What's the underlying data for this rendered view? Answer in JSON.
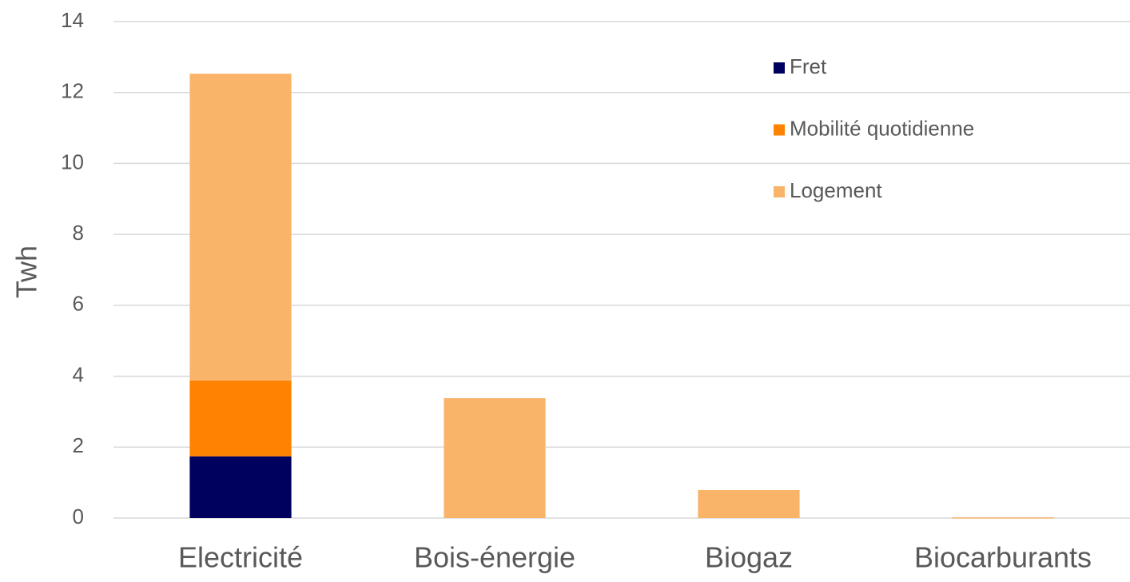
{
  "chart_data": {
    "type": "stacked_bar",
    "y_label": "Twh",
    "categories": [
      "Electricité",
      "Bois-énergie",
      "Biogaz",
      "Biocarburants"
    ],
    "series": [
      {
        "name": "Fret",
        "color": "#00005e",
        "values": [
          1.74,
          0,
          0,
          0
        ]
      },
      {
        "name": "Mobilité quotidienne",
        "color": "#ff8300",
        "values": [
          2.14,
          0,
          0,
          0
        ]
      },
      {
        "name": "Logement",
        "color": "#f9b469",
        "values": [
          8.65,
          3.38,
          0.79,
          0.02
        ]
      }
    ],
    "ylim": [
      0,
      14
    ],
    "yticks": [
      0,
      2,
      4,
      6,
      8,
      10,
      12,
      14
    ],
    "grid": true,
    "legend": "upper right"
  }
}
